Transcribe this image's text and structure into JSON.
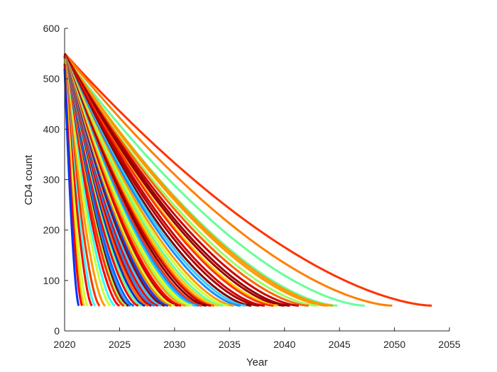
{
  "chart_data": {
    "type": "line",
    "title": "",
    "xlabel": "Year",
    "ylabel": "CD4 count",
    "xlim": [
      2020,
      2055
    ],
    "ylim": [
      0,
      600
    ],
    "xticks": [
      2020,
      2025,
      2030,
      2035,
      2040,
      2045,
      2050,
      2055
    ],
    "yticks": [
      0,
      100,
      200,
      300,
      400,
      500,
      600
    ],
    "grid": false,
    "legend": "none",
    "curve_shape": "convex decay from CD4 ~550 at 2020 down to 50",
    "series": [
      {
        "start": 550,
        "end_year": 2053.4,
        "color": "#ff3300"
      },
      {
        "start": 550,
        "end_year": 2049.8,
        "color": "#ff8000"
      },
      {
        "start": 545,
        "end_year": 2047.3,
        "color": "#66ff99"
      },
      {
        "start": 545,
        "end_year": 2044.8,
        "color": "#66ff99"
      },
      {
        "start": 548,
        "end_year": 2044.4,
        "color": "#ff9900"
      },
      {
        "start": 548,
        "end_year": 2043.9,
        "color": "#ff9900"
      },
      {
        "start": 545,
        "end_year": 2043.0,
        "color": "#99ff66"
      },
      {
        "start": 548,
        "end_year": 2042.2,
        "color": "#ff6600"
      },
      {
        "start": 548,
        "end_year": 2041.3,
        "color": "#cc0000"
      },
      {
        "start": 550,
        "end_year": 2040.5,
        "color": "#990000"
      },
      {
        "start": 548,
        "end_year": 2040.0,
        "color": "#990000"
      },
      {
        "start": 545,
        "end_year": 2039.4,
        "color": "#ffcc00"
      },
      {
        "start": 548,
        "end_year": 2039.0,
        "color": "#ff3300"
      },
      {
        "start": 548,
        "end_year": 2038.2,
        "color": "#cc0000"
      },
      {
        "start": 545,
        "end_year": 2037.7,
        "color": "#aa0000"
      },
      {
        "start": 545,
        "end_year": 2037.0,
        "color": "#800000"
      },
      {
        "start": 545,
        "end_year": 2036.5,
        "color": "#33ccff"
      },
      {
        "start": 545,
        "end_year": 2036.0,
        "color": "#1a8cff"
      },
      {
        "start": 545,
        "end_year": 2035.4,
        "color": "#ff9900"
      },
      {
        "start": 545,
        "end_year": 2034.9,
        "color": "#ccff33"
      },
      {
        "start": 545,
        "end_year": 2034.4,
        "color": "#66ff99"
      },
      {
        "start": 545,
        "end_year": 2034.0,
        "color": "#ffcc00"
      },
      {
        "start": 545,
        "end_year": 2033.6,
        "color": "#ff6600"
      },
      {
        "start": 545,
        "end_year": 2033.3,
        "color": "#cc0000"
      },
      {
        "start": 545,
        "end_year": 2032.9,
        "color": "#800000"
      },
      {
        "start": 545,
        "end_year": 2032.5,
        "color": "#ff3300"
      },
      {
        "start": 545,
        "end_year": 2032.2,
        "color": "#1a8cff"
      },
      {
        "start": 545,
        "end_year": 2031.9,
        "color": "#33ccff"
      },
      {
        "start": 545,
        "end_year": 2031.6,
        "color": "#ffff00"
      },
      {
        "start": 545,
        "end_year": 2031.3,
        "color": "#99ff66"
      },
      {
        "start": 545,
        "end_year": 2031.0,
        "color": "#ff9900"
      },
      {
        "start": 545,
        "end_year": 2030.6,
        "color": "#ff0000"
      },
      {
        "start": 545,
        "end_year": 2030.3,
        "color": "#cc0000"
      },
      {
        "start": 545,
        "end_year": 2030.0,
        "color": "#ccff33"
      },
      {
        "start": 545,
        "end_year": 2029.7,
        "color": "#ff8000"
      },
      {
        "start": 545,
        "end_year": 2029.4,
        "color": "#0044ff"
      },
      {
        "start": 545,
        "end_year": 2029.1,
        "color": "#990000"
      },
      {
        "start": 545,
        "end_year": 2028.8,
        "color": "#33ccff"
      },
      {
        "start": 545,
        "end_year": 2028.5,
        "color": "#ff0000"
      },
      {
        "start": 545,
        "end_year": 2028.2,
        "color": "#1a8cff"
      },
      {
        "start": 545,
        "end_year": 2027.9,
        "color": "#cc0000"
      },
      {
        "start": 545,
        "end_year": 2027.6,
        "color": "#ff6600"
      },
      {
        "start": 545,
        "end_year": 2027.3,
        "color": "#0033cc"
      },
      {
        "start": 545,
        "end_year": 2027.0,
        "color": "#66ff99"
      },
      {
        "start": 545,
        "end_year": 2026.7,
        "color": "#ff0000"
      },
      {
        "start": 545,
        "end_year": 2026.3,
        "color": "#0066ff"
      },
      {
        "start": 545,
        "end_year": 2026.0,
        "color": "#1a8cff"
      },
      {
        "start": 545,
        "end_year": 2025.8,
        "color": "#800000"
      },
      {
        "start": 545,
        "end_year": 2025.6,
        "color": "#99ff66"
      },
      {
        "start": 545,
        "end_year": 2025.4,
        "color": "#ff3300"
      },
      {
        "start": 545,
        "end_year": 2025.0,
        "color": "#ff0000"
      },
      {
        "start": 545,
        "end_year": 2024.6,
        "color": "#33ffff"
      },
      {
        "start": 545,
        "end_year": 2024.2,
        "color": "#ccff33"
      },
      {
        "start": 545,
        "end_year": 2023.7,
        "color": "#ff9900"
      },
      {
        "start": 545,
        "end_year": 2023.2,
        "color": "#ff3300"
      },
      {
        "start": 545,
        "end_year": 2022.8,
        "color": "#33ffff"
      },
      {
        "start": 545,
        "end_year": 2022.5,
        "color": "#ff0000"
      },
      {
        "start": 540,
        "end_year": 2022.1,
        "color": "#ccff33"
      },
      {
        "start": 535,
        "end_year": 2021.8,
        "color": "#ffcc00"
      },
      {
        "start": 530,
        "end_year": 2021.6,
        "color": "#ff0000"
      },
      {
        "start": 520,
        "end_year": 2021.3,
        "color": "#0033ff"
      }
    ]
  }
}
